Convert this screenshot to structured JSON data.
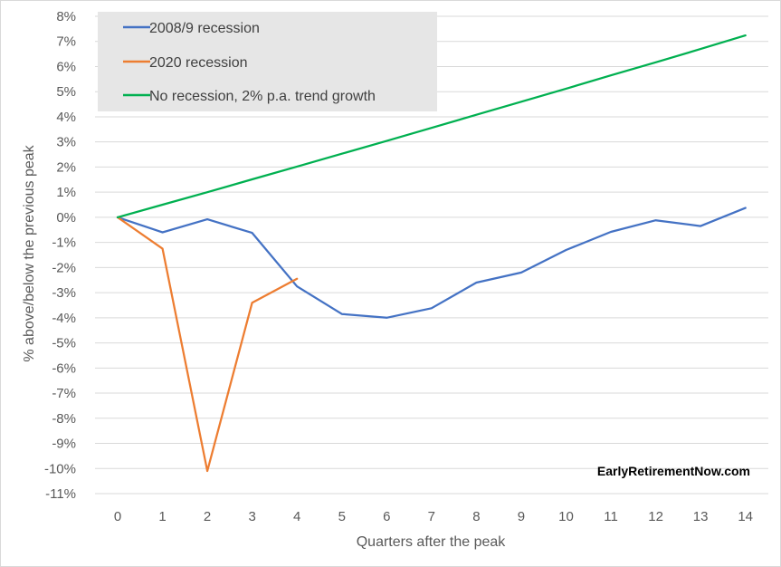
{
  "chart_data": {
    "type": "line",
    "title": "",
    "xlabel": "Quarters after the peak",
    "ylabel": "% above/below the previous peak",
    "x": [
      0,
      1,
      2,
      3,
      4,
      5,
      6,
      7,
      8,
      9,
      10,
      11,
      12,
      13,
      14
    ],
    "xlim": [
      0,
      14
    ],
    "ylim": [
      -11,
      8
    ],
    "x_ticks": [
      "0",
      "1",
      "2",
      "3",
      "4",
      "5",
      "6",
      "7",
      "8",
      "9",
      "10",
      "11",
      "12",
      "13",
      "14"
    ],
    "y_ticks": [
      "8%",
      "7%",
      "6%",
      "5%",
      "4%",
      "3%",
      "2%",
      "1%",
      "0%",
      "-1%",
      "-2%",
      "-3%",
      "-4%",
      "-5%",
      "-6%",
      "-7%",
      "-8%",
      "-9%",
      "-10%",
      "-11%"
    ],
    "grid": "horizontal",
    "legend_position": "top-left",
    "annotation": "EarlyRetirementNow.com",
    "series": [
      {
        "name": "2008/9 recession",
        "color": "#4472c4",
        "x": [
          0,
          1,
          2,
          3,
          4,
          5,
          6,
          7,
          8,
          9,
          10,
          11,
          12,
          13,
          14
        ],
        "values": [
          0,
          -0.6,
          -0.08,
          -0.62,
          -2.75,
          -3.85,
          -4.0,
          -3.62,
          -2.6,
          -2.2,
          -1.3,
          -0.58,
          -0.12,
          -0.35,
          0.37
        ]
      },
      {
        "name": "2020 recession",
        "color": "#ed7d31",
        "x": [
          0,
          1,
          2,
          3,
          4
        ],
        "values": [
          0,
          -1.25,
          -10.1,
          -3.4,
          -2.45
        ]
      },
      {
        "name": "No recession, 2% p.a. trend growth",
        "color": "#00b050",
        "x": [
          0,
          1,
          2,
          3,
          4,
          5,
          6,
          7,
          8,
          9,
          10,
          11,
          12,
          13,
          14
        ],
        "values": [
          0,
          0.5,
          1.0,
          1.51,
          2.02,
          2.53,
          3.04,
          3.56,
          4.08,
          4.6,
          5.12,
          5.65,
          6.17,
          6.7,
          7.24
        ]
      }
    ]
  }
}
